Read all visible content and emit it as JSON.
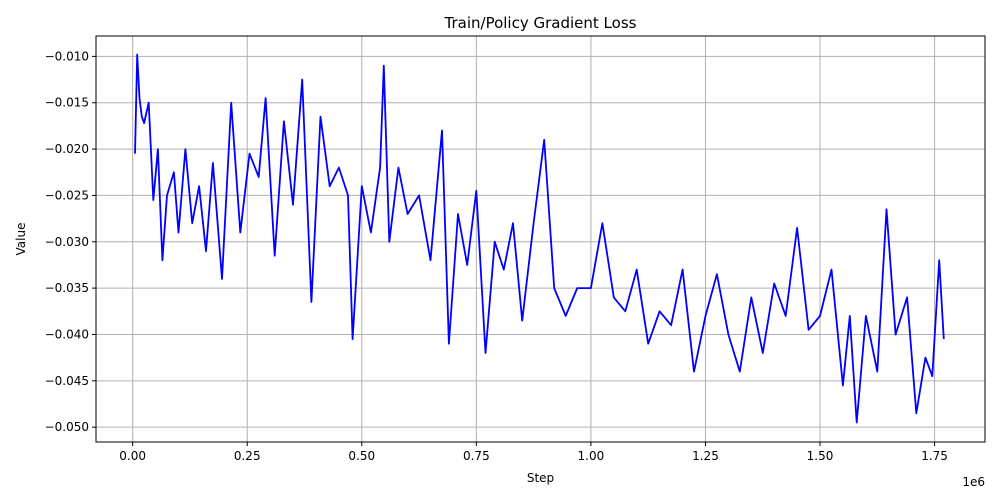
{
  "chart_data": {
    "type": "line",
    "title": "Train/Policy Gradient Loss",
    "xlabel": "Step",
    "ylabel": "Value",
    "x_offset_label": "1e6",
    "xlim": [
      -80000,
      1860000
    ],
    "ylim": [
      -0.0516,
      -0.0078
    ],
    "xticks": [
      0,
      250000,
      500000,
      750000,
      1000000,
      1250000,
      1500000,
      1750000
    ],
    "xtick_labels": [
      "0.00",
      "0.25",
      "0.50",
      "0.75",
      "1.00",
      "1.25",
      "1.50",
      "1.75"
    ],
    "yticks": [
      -0.05,
      -0.045,
      -0.04,
      -0.035,
      -0.03,
      -0.025,
      -0.02,
      -0.015,
      -0.01
    ],
    "ytick_labels": [
      "−0.050",
      "−0.045",
      "−0.040",
      "−0.035",
      "−0.030",
      "−0.025",
      "−0.020",
      "−0.015",
      "−0.010"
    ],
    "grid": true,
    "series": [
      {
        "color": "#0000ff",
        "x": [
          5000,
          10000,
          15000,
          20000,
          25000,
          35000,
          45000,
          55000,
          65000,
          75000,
          90000,
          100000,
          115000,
          130000,
          145000,
          160000,
          175000,
          195000,
          215000,
          235000,
          255000,
          275000,
          290000,
          310000,
          330000,
          350000,
          370000,
          390000,
          410000,
          430000,
          450000,
          470000,
          480000,
          500000,
          520000,
          540000,
          548000,
          560000,
          580000,
          600000,
          625000,
          650000,
          675000,
          690000,
          710000,
          730000,
          750000,
          770000,
          790000,
          810000,
          830000,
          850000,
          875000,
          898000,
          920000,
          945000,
          970000,
          1000000,
          1025000,
          1050000,
          1075000,
          1100000,
          1125000,
          1150000,
          1175000,
          1200000,
          1225000,
          1250000,
          1275000,
          1300000,
          1325000,
          1350000,
          1375000,
          1400000,
          1425000,
          1450000,
          1475000,
          1500000,
          1525000,
          1550000,
          1565000,
          1580000,
          1600000,
          1625000,
          1645000,
          1665000,
          1690000,
          1710000,
          1730000,
          1745000,
          1760000,
          1770000
        ],
        "values": [
          -0.0205,
          -0.0098,
          -0.0145,
          -0.0165,
          -0.0172,
          -0.015,
          -0.0255,
          -0.02,
          -0.032,
          -0.025,
          -0.0225,
          -0.029,
          -0.02,
          -0.028,
          -0.024,
          -0.031,
          -0.0215,
          -0.034,
          -0.015,
          -0.029,
          -0.0205,
          -0.023,
          -0.0145,
          -0.0315,
          -0.017,
          -0.026,
          -0.0125,
          -0.0365,
          -0.0165,
          -0.024,
          -0.022,
          -0.025,
          -0.0405,
          -0.024,
          -0.029,
          -0.022,
          -0.011,
          -0.03,
          -0.022,
          -0.027,
          -0.025,
          -0.032,
          -0.018,
          -0.041,
          -0.027,
          -0.0325,
          -0.0245,
          -0.042,
          -0.03,
          -0.033,
          -0.028,
          -0.0385,
          -0.028,
          -0.019,
          -0.035,
          -0.038,
          -0.035,
          -0.035,
          -0.028,
          -0.036,
          -0.0375,
          -0.033,
          -0.041,
          -0.0375,
          -0.039,
          -0.033,
          -0.044,
          -0.038,
          -0.0335,
          -0.04,
          -0.044,
          -0.036,
          -0.042,
          -0.0345,
          -0.038,
          -0.0285,
          -0.0395,
          -0.038,
          -0.033,
          -0.0455,
          -0.038,
          -0.0495,
          -0.038,
          -0.044,
          -0.0265,
          -0.04,
          -0.036,
          -0.0485,
          -0.0425,
          -0.0445,
          -0.032,
          -0.0405
        ]
      }
    ]
  }
}
